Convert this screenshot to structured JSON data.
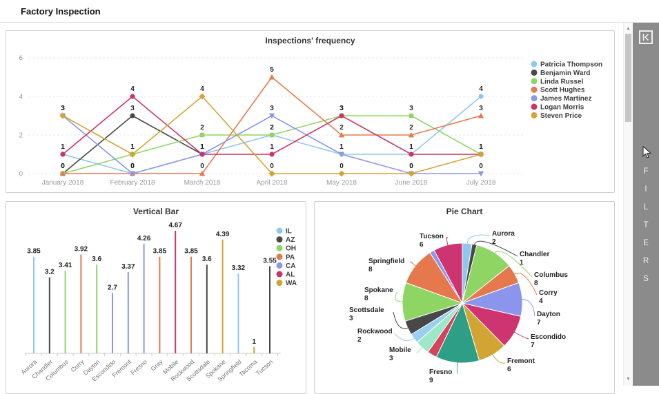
{
  "header": {
    "title": "Factory Inspection"
  },
  "filters_panel": {
    "label": "FILTERS"
  },
  "chart_data": [
    {
      "type": "line",
      "title": "Inspections' frequency",
      "x": [
        "January 2018",
        "February 2018",
        "March 2018",
        "April 2018",
        "May 2018",
        "June 2018",
        "July 2018"
      ],
      "yticks": [
        0,
        2,
        4,
        6
      ],
      "ylim": [
        0,
        6
      ],
      "grid": true,
      "legend_position": "right",
      "series": [
        {
          "name": "Patricia Thompson",
          "color": "#8ec8ee",
          "marker": "circle",
          "values": [
            1,
            0,
            1,
            2,
            1,
            1,
            4
          ]
        },
        {
          "name": "Benjamin Ward",
          "color": "#484848",
          "marker": "circle",
          "values": [
            0,
            3,
            1,
            null,
            null,
            null,
            null
          ]
        },
        {
          "name": "Linda Russel",
          "color": "#8ed563",
          "marker": "square",
          "values": [
            0,
            1,
            2,
            2,
            3,
            3,
            1
          ]
        },
        {
          "name": "Scott Hughes",
          "color": "#e5794d",
          "marker": "triangle-up",
          "values": [
            0,
            0,
            0,
            5,
            2,
            2,
            3
          ]
        },
        {
          "name": "James Martinez",
          "color": "#8b95ec",
          "marker": "triangle-down",
          "values": [
            3,
            0,
            1,
            3,
            1,
            0,
            0
          ]
        },
        {
          "name": "Logan Morris",
          "color": "#cc3366",
          "marker": "circle",
          "values": [
            1,
            4,
            1,
            1,
            3,
            1,
            1
          ]
        },
        {
          "name": "Steven Price",
          "color": "#d2a433",
          "marker": "diamond",
          "values": [
            3,
            1,
            4,
            0,
            0,
            0,
            1
          ]
        }
      ]
    },
    {
      "type": "bar",
      "title": "Vertical Bar",
      "categories": [
        "Aurora",
        "Chandler",
        "Columbus",
        "Corry",
        "Dayton",
        "Escondido",
        "Fremont",
        "Fresno",
        "Gray",
        "Mobile",
        "Rockwood",
        "Scottsdale",
        "Spokane",
        "Springfield",
        "Tacoma",
        "Tucson"
      ],
      "values": [
        3.85,
        3.2,
        3.41,
        3.92,
        3.6,
        2.7,
        3.37,
        4.26,
        3.85,
        4.67,
        3.85,
        3.6,
        4.39,
        3.32,
        1,
        3.55
      ],
      "category_state": [
        "IL",
        "AZ",
        "OH",
        "PA",
        "OH",
        "CA",
        "CA",
        "CA",
        "PA",
        "AL",
        "PA",
        "AZ",
        "WA",
        "IL",
        "WA",
        "AZ"
      ],
      "legend": [
        {
          "label": "IL",
          "color": "#8ec8ee"
        },
        {
          "label": "AZ",
          "color": "#484848"
        },
        {
          "label": "OH",
          "color": "#8ed563"
        },
        {
          "label": "PA",
          "color": "#e5794d"
        },
        {
          "label": "CA",
          "color": "#8b95ec"
        },
        {
          "label": "AL",
          "color": "#cc3366"
        },
        {
          "label": "WA",
          "color": "#d2a433"
        }
      ]
    },
    {
      "type": "pie",
      "title": "Pie Chart",
      "slices": [
        {
          "label": "Aurora",
          "value": 2,
          "color": "#8ec8ee",
          "label_visible": true
        },
        {
          "label": "Chandler",
          "value": 1,
          "color": "#484848",
          "label_visible": true
        },
        {
          "label": "Columbus",
          "value": 8,
          "color": "#8ed563",
          "label_visible": true
        },
        {
          "label": "Corry",
          "value": 4,
          "color": "#e5794d",
          "label_visible": true
        },
        {
          "label": "Dayton",
          "value": 7,
          "color": "#8b95ec",
          "label_visible": true
        },
        {
          "label": "Escondido",
          "value": 7,
          "color": "#ce3570",
          "label_visible": true
        },
        {
          "label": "Fremont",
          "value": 6,
          "color": "#d2a433",
          "label_visible": true
        },
        {
          "label": "Fresno",
          "value": 9,
          "color": "#2f9e87",
          "label_visible": true
        },
        {
          "label": "Gray",
          "value": 2,
          "color": "#d3445c",
          "label_visible": false
        },
        {
          "label": "Mobile",
          "value": 3,
          "color": "#9ce8c8",
          "label_visible": true
        },
        {
          "label": "Rockwood",
          "value": 2,
          "color": "#9bcff2",
          "label_visible": true
        },
        {
          "label": "Scottsdale",
          "value": 3,
          "color": "#484848",
          "label_visible": true
        },
        {
          "label": "Spokane",
          "value": 8,
          "color": "#8ed563",
          "label_visible": true
        },
        {
          "label": "Springfield",
          "value": 8,
          "color": "#e5794d",
          "label_visible": true
        },
        {
          "label": "Tacoma",
          "value": 1,
          "color": "#8b95ec",
          "label_visible": false
        },
        {
          "label": "Tucson",
          "value": 6,
          "color": "#ce3570",
          "label_visible": true
        }
      ]
    }
  ]
}
